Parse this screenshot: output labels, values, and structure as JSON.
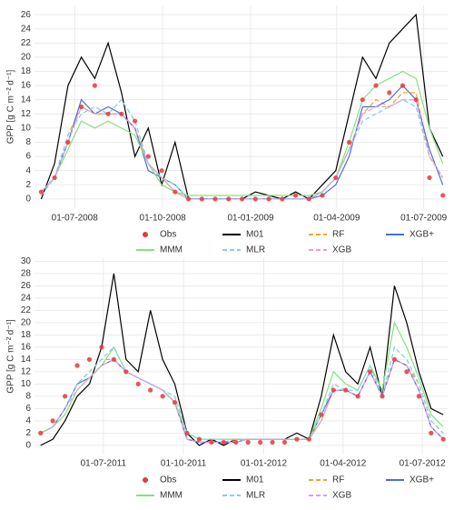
{
  "chart_data": [
    {
      "type": "line",
      "ylabel": "GPP [g C m⁻² d⁻¹]",
      "grid": true,
      "x": [
        "2008-05-27",
        "2008-06-10",
        "2008-06-24",
        "2008-07-08",
        "2008-07-22",
        "2008-08-05",
        "2008-08-19",
        "2008-09-02",
        "2008-09-16",
        "2008-09-30",
        "2008-10-14",
        "2008-10-28",
        "2008-11-11",
        "2008-11-25",
        "2008-12-09",
        "2008-12-23",
        "2009-01-06",
        "2009-01-20",
        "2009-02-03",
        "2009-02-17",
        "2009-03-03",
        "2009-03-17",
        "2009-03-31",
        "2009-04-14",
        "2009-04-28",
        "2009-05-12",
        "2009-05-26",
        "2009-06-09",
        "2009-06-23",
        "2009-07-07",
        "2009-07-21"
      ],
      "xlim": [
        "2008-05-20",
        "2009-07-26"
      ],
      "xticks": [
        {
          "value": "2008-07-01",
          "label": "01-07-2008"
        },
        {
          "value": "2008-10-01",
          "label": "01-10-2008"
        },
        {
          "value": "2009-01-01",
          "label": "01-01-2009"
        },
        {
          "value": "2009-04-01",
          "label": "01-04-2009"
        },
        {
          "value": "2009-07-01",
          "label": "01-07-2009"
        }
      ],
      "ylim": [
        -1.3,
        27.3
      ],
      "yticks": [
        0,
        2,
        4,
        6,
        8,
        10,
        12,
        14,
        16,
        18,
        20,
        22,
        24,
        26
      ],
      "series": [
        {
          "name": "Obs",
          "color": "#e8373d",
          "style": "points",
          "values": [
            1,
            3,
            8,
            13,
            16,
            12,
            12,
            11,
            6,
            4,
            1,
            0,
            0,
            0,
            0,
            0,
            0,
            0,
            0,
            0.5,
            0,
            0.5,
            3,
            8,
            14,
            16,
            15,
            16,
            14,
            3,
            0.5
          ]
        },
        {
          "name": "M01",
          "color": "#000000",
          "style": "solid",
          "values": [
            0,
            5,
            16,
            20,
            17,
            22,
            15,
            6,
            10,
            2,
            8,
            0,
            0,
            0,
            0,
            0,
            1,
            0.5,
            0,
            1,
            0,
            2,
            4,
            12,
            20,
            17,
            22,
            24,
            26,
            10,
            6
          ]
        },
        {
          "name": "RF",
          "color": "#f5a623",
          "style": "dashed",
          "values": [
            0.5,
            3,
            9,
            13,
            12,
            12,
            12,
            10,
            5,
            3,
            1,
            0,
            0,
            0,
            0,
            0,
            0,
            0,
            0,
            0,
            0,
            1,
            3,
            7,
            12,
            14,
            13,
            15,
            15,
            6,
            3
          ]
        },
        {
          "name": "XGB+",
          "color": "#4a6fd8",
          "style": "solid",
          "values": [
            1,
            3,
            8,
            14,
            12,
            13,
            12,
            10,
            4,
            3,
            2,
            0,
            0,
            0,
            0,
            0,
            0,
            0,
            0,
            0,
            0,
            0.5,
            2,
            6,
            13,
            13,
            14,
            16,
            14,
            7,
            2
          ]
        },
        {
          "name": "MMM",
          "color": "#86e07f",
          "style": "solid",
          "values": [
            1,
            3,
            7,
            11,
            10,
            11,
            10,
            9,
            5,
            2,
            1,
            0.5,
            0.5,
            0.5,
            0.5,
            0.5,
            0.5,
            0.5,
            0.5,
            0.5,
            0.5,
            1,
            3,
            8,
            14,
            16,
            17,
            18,
            17,
            10,
            5
          ]
        },
        {
          "name": "MLR",
          "color": "#7fd3e6",
          "style": "dashed",
          "values": [
            0.5,
            3,
            9,
            12,
            13,
            12,
            14,
            11,
            5,
            3,
            2,
            0,
            0,
            0,
            0,
            0,
            0,
            0,
            0,
            0,
            0,
            1,
            3,
            7,
            11,
            12,
            13,
            14,
            13,
            6,
            3
          ]
        },
        {
          "name": "XGB",
          "color": "#e59ae8",
          "style": "dashed",
          "values": [
            1,
            3,
            8,
            13,
            12,
            12,
            12,
            10,
            5,
            3,
            1,
            0,
            0,
            0,
            0,
            0,
            0,
            0,
            0,
            0,
            0,
            1,
            3,
            7,
            12,
            13,
            13,
            14,
            14,
            6,
            3
          ]
        }
      ]
    },
    {
      "type": "line",
      "ylabel": "GPP [g C m⁻² d⁻¹]",
      "grid": true,
      "x": [
        "2011-04-20",
        "2011-05-04",
        "2011-05-18",
        "2011-06-01",
        "2011-06-15",
        "2011-06-29",
        "2011-07-13",
        "2011-07-27",
        "2011-08-10",
        "2011-08-24",
        "2011-09-07",
        "2011-09-21",
        "2011-10-05",
        "2011-10-19",
        "2011-11-02",
        "2011-11-16",
        "2011-11-30",
        "2011-12-14",
        "2011-12-28",
        "2012-01-11",
        "2012-01-25",
        "2012-02-08",
        "2012-02-22",
        "2012-03-07",
        "2012-03-21",
        "2012-04-04",
        "2012-04-18",
        "2012-05-02",
        "2012-05-16",
        "2012-05-30",
        "2012-06-13",
        "2012-06-27",
        "2012-07-11",
        "2012-07-25"
      ],
      "xlim": [
        "2011-04-13",
        "2012-07-30"
      ],
      "xticks": [
        {
          "value": "2011-07-01",
          "label": "01-07-2011"
        },
        {
          "value": "2011-10-01",
          "label": "01-10-2011"
        },
        {
          "value": "2012-01-01",
          "label": "01-01-2012"
        },
        {
          "value": "2012-04-01",
          "label": "01-04-2012"
        },
        {
          "value": "2012-07-01",
          "label": "01-07-2012"
        }
      ],
      "ylim": [
        -1.5,
        30.5
      ],
      "yticks": [
        0,
        2,
        4,
        6,
        8,
        10,
        12,
        14,
        16,
        18,
        20,
        22,
        24,
        26,
        28,
        30
      ],
      "series": [
        {
          "name": "Obs",
          "color": "#e8373d",
          "style": "points",
          "values": [
            2,
            4,
            8,
            13,
            14,
            16,
            14,
            12,
            10,
            9,
            8,
            7,
            2,
            1,
            0.5,
            0.5,
            0.5,
            0.5,
            0.5,
            0.5,
            0.5,
            1,
            1,
            5,
            9,
            9,
            8,
            12,
            8,
            14,
            12,
            8,
            2,
            1
          ]
        },
        {
          "name": "M01",
          "color": "#000000",
          "style": "solid",
          "values": [
            0,
            1,
            4,
            8,
            10,
            16,
            28,
            14,
            12,
            22,
            14,
            10,
            2,
            0,
            1,
            0,
            1,
            1,
            1,
            1,
            1,
            2,
            1,
            8,
            18,
            12,
            10,
            16,
            8,
            26,
            20,
            12,
            6,
            5
          ]
        },
        {
          "name": "RF",
          "color": "#f5a623",
          "style": "dashed",
          "values": [
            2,
            3,
            6,
            10,
            12,
            14,
            14,
            12,
            11,
            10,
            9,
            7,
            1,
            0.5,
            0.5,
            0.5,
            1,
            1,
            1,
            1,
            1,
            1,
            1,
            4,
            9,
            9,
            8,
            12,
            8,
            14,
            13,
            10,
            4,
            2
          ]
        },
        {
          "name": "XGB+",
          "color": "#4a6fd8",
          "style": "solid",
          "values": [
            2,
            3,
            6,
            10,
            11,
            13,
            14,
            12,
            11,
            10,
            9,
            7,
            1,
            0.5,
            0.5,
            0.5,
            0.5,
            1,
            1,
            1,
            1,
            1,
            1,
            5,
            9,
            9,
            8,
            12,
            8,
            14,
            13,
            9,
            3,
            1
          ]
        },
        {
          "name": "MMM",
          "color": "#86e07f",
          "style": "solid",
          "values": [
            2,
            3,
            5,
            9,
            11,
            13,
            16,
            12,
            11,
            10,
            9,
            7,
            2,
            1,
            1,
            1,
            1,
            1,
            1,
            1,
            1,
            1,
            1,
            6,
            12,
            10,
            9,
            13,
            9,
            20,
            16,
            11,
            5,
            3
          ]
        },
        {
          "name": "MLR",
          "color": "#7fd3e6",
          "style": "dashed",
          "values": [
            2,
            3,
            6,
            10,
            12,
            14,
            16,
            12,
            11,
            10,
            9,
            8,
            2,
            1,
            1,
            1,
            1,
            1,
            1,
            1,
            1,
            1,
            1,
            5,
            10,
            9,
            9,
            13,
            8,
            16,
            14,
            10,
            4,
            2
          ]
        },
        {
          "name": "XGB",
          "color": "#e59ae8",
          "style": "dashed",
          "values": [
            2,
            3,
            6,
            9,
            11,
            13,
            14,
            12,
            11,
            10,
            9,
            7,
            1,
            0.5,
            0.5,
            0.5,
            0.5,
            1,
            1,
            1,
            1,
            1,
            1,
            4,
            9,
            9,
            8,
            12,
            8,
            14,
            13,
            9,
            3,
            1
          ]
        }
      ]
    }
  ]
}
